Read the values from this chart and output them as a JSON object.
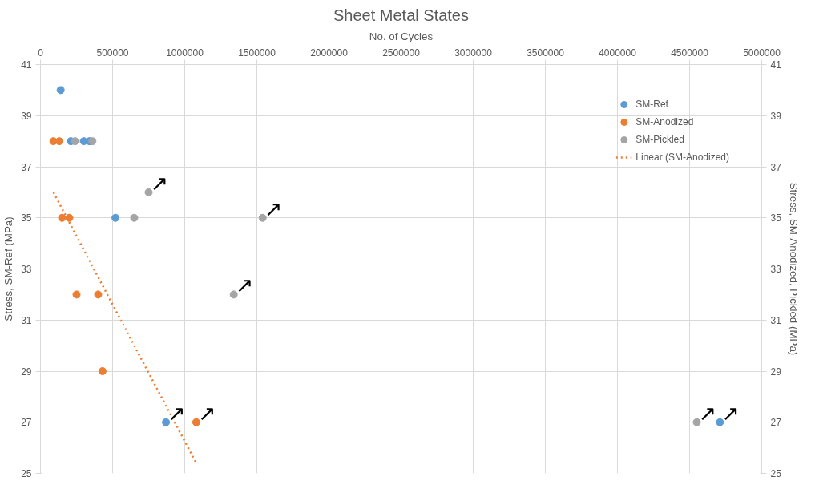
{
  "chart_data": {
    "type": "scatter",
    "title": "Sheet Metal States",
    "xlabel": "No. of Cycles",
    "ylabel": "Stress, SM-Ref (MPa)",
    "y2label": "Stress, SM-Anodized, Pickled (MPa)",
    "xlim": [
      0,
      5000000
    ],
    "xticks": [
      0,
      500000,
      1000000,
      1500000,
      2000000,
      2500000,
      3000000,
      3500000,
      4000000,
      4500000,
      5000000
    ],
    "ylim": [
      25,
      41
    ],
    "yticks": [
      25,
      27,
      29,
      31,
      33,
      35,
      37,
      39,
      41
    ],
    "y2lim": [
      25,
      41
    ],
    "y2ticks": [
      25,
      27,
      29,
      31,
      33,
      35,
      37,
      39,
      41
    ],
    "grid": true,
    "legend": "top right",
    "series": [
      {
        "name": "SM-Ref",
        "color": "#5b9bd5",
        "marker": "circle",
        "x": [
          140000,
          210000,
          300000,
          340000,
          520000,
          870000,
          4710000
        ],
        "values": [
          40,
          38,
          38,
          38,
          35,
          27,
          27
        ]
      },
      {
        "name": "SM-Anodized",
        "color": "#ed7d31",
        "marker": "circle",
        "x": [
          90000,
          130000,
          150000,
          200000,
          250000,
          400000,
          430000,
          1080000
        ],
        "values": [
          38,
          38,
          35,
          35,
          32,
          32,
          29,
          27
        ]
      },
      {
        "name": "SM-Pickled",
        "color": "#a5a5a5",
        "marker": "circle",
        "x": [
          240000,
          360000,
          650000,
          750000,
          1540000,
          1340000,
          4550000
        ],
        "values": [
          38,
          38,
          35,
          36,
          35,
          32,
          27
        ]
      },
      {
        "name": "Linear (SM-Anodized)",
        "type": "line",
        "line_style": "dotted",
        "color": "#ed7d31",
        "x": [
          90000,
          1080000
        ],
        "values": [
          36,
          25.4
        ]
      }
    ],
    "annotations": [
      {
        "text": "↗",
        "x": 870000,
        "y": 27
      },
      {
        "text": "↗",
        "x": 4710000,
        "y": 27
      },
      {
        "text": "↗",
        "x": 1080000,
        "y": 27
      },
      {
        "text": "↗",
        "x": 750000,
        "y": 36
      },
      {
        "text": "↗",
        "x": 1540000,
        "y": 35
      },
      {
        "text": "↗",
        "x": 1340000,
        "y": 32
      },
      {
        "text": "↗",
        "x": 4550000,
        "y": 27
      }
    ]
  }
}
